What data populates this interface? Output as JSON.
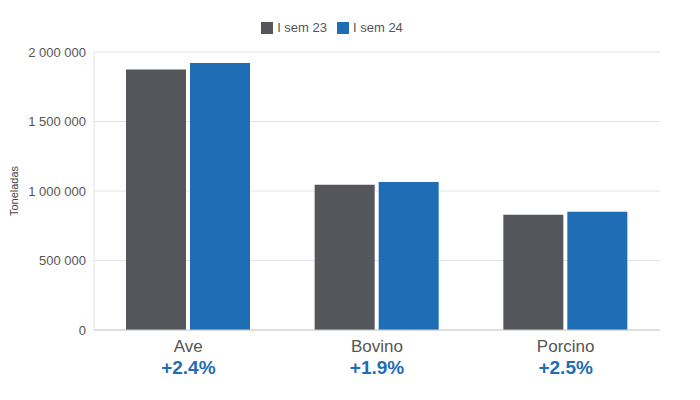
{
  "chart_data": {
    "type": "bar",
    "y_label": "Toneladas",
    "categories": [
      "Ave",
      "Bovino",
      "Porcino"
    ],
    "category_annotations": [
      "+2.4%",
      "+1.9%",
      "+2.5%"
    ],
    "series": [
      {
        "name": "I sem 23",
        "color": "#54565b",
        "values": [
          1875000,
          1045000,
          830000
        ]
      },
      {
        "name": "I sem 24",
        "color": "#1f6db5",
        "values": [
          1920000,
          1065000,
          851000
        ]
      }
    ],
    "ylim": [
      0,
      2000000
    ],
    "yticks": [
      0,
      {
        "value": 500000,
        "label": "500 000"
      },
      {
        "value": 1000000,
        "label": "1 000 000"
      },
      {
        "value": 1500000,
        "label": "1 500 000"
      },
      {
        "value": 2000000,
        "label": "2 000 000"
      }
    ],
    "grid": true,
    "legend": "top"
  }
}
